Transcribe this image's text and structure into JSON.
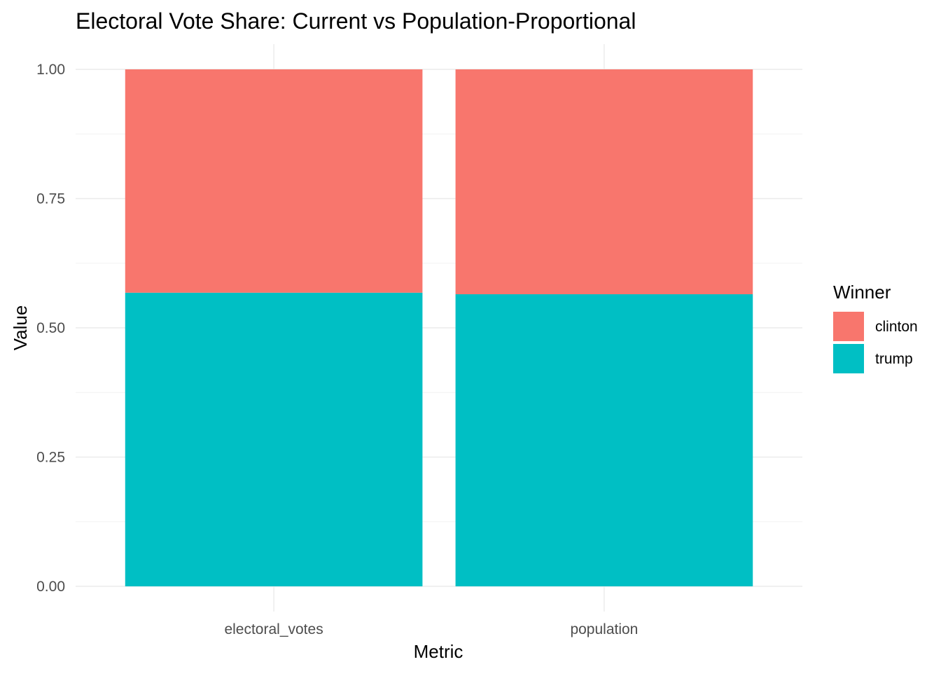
{
  "chart_data": {
    "type": "bar",
    "stacked": true,
    "title": "Electoral Vote Share: Current vs Population-Proportional",
    "xlabel": "Metric",
    "ylabel": "Value",
    "categories": [
      "electoral_votes",
      "population"
    ],
    "series": [
      {
        "name": "trump",
        "values": [
          0.568,
          0.565
        ],
        "color": "#00BFC4"
      },
      {
        "name": "clinton",
        "values": [
          0.432,
          0.435
        ],
        "color": "#F8766D"
      }
    ],
    "ylim": [
      0,
      1
    ],
    "yticks": [
      0.0,
      0.25,
      0.5,
      0.75,
      1.0
    ],
    "ytick_labels": [
      "0.00",
      "0.25",
      "0.50",
      "0.75",
      "1.00"
    ],
    "grid": true,
    "legend": {
      "title": "Winner",
      "placement": "right",
      "entries": [
        {
          "label": "clinton",
          "color": "#F8766D"
        },
        {
          "label": "trump",
          "color": "#00BFC4"
        }
      ]
    }
  }
}
